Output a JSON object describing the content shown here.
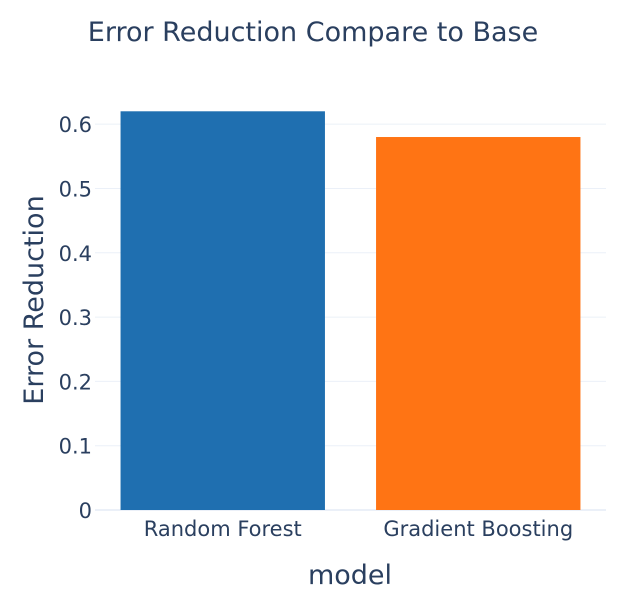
{
  "chart_data": {
    "type": "bar",
    "title": "Error Reduction Compare to Base",
    "xlabel": "model",
    "ylabel": "Error Reduction",
    "categories": [
      "Random Forest",
      "Gradient Boosting"
    ],
    "values": [
      0.62,
      0.58
    ],
    "colors": [
      "#1f6fb0",
      "#ff7414"
    ],
    "ylim": [
      0,
      0.65
    ],
    "yticks": [
      0,
      0.1,
      0.2,
      0.3,
      0.4,
      0.5,
      0.6
    ],
    "ytick_labels": [
      "0",
      "0.1",
      "0.2",
      "0.3",
      "0.4",
      "0.5",
      "0.6"
    ],
    "grid": true,
    "legend": "none"
  }
}
